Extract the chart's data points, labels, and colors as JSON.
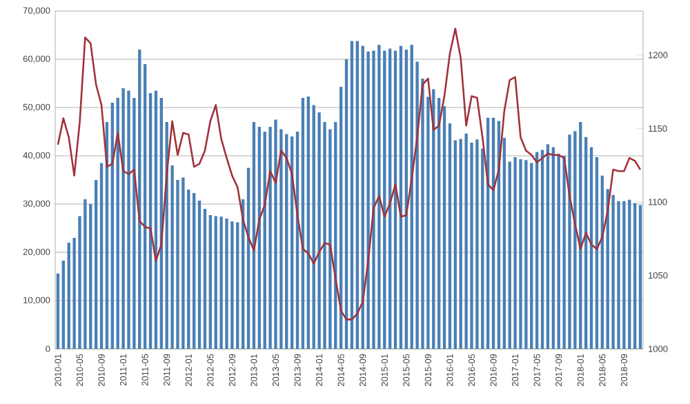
{
  "chart_data": {
    "type": "bar",
    "categories": [
      "2010-01",
      null,
      null,
      null,
      "2010-05",
      null,
      null,
      null,
      "2010-09",
      null,
      null,
      null,
      "2011-01",
      null,
      null,
      null,
      "2011-05",
      null,
      null,
      null,
      "2011-09",
      null,
      null,
      null,
      "2012-01",
      null,
      null,
      null,
      "2012-05",
      null,
      null,
      null,
      "2012-09",
      null,
      null,
      null,
      "2013-01",
      null,
      null,
      null,
      "2013-05",
      null,
      null,
      null,
      "2013-09",
      null,
      null,
      null,
      "2014-01",
      null,
      null,
      null,
      "2014-05",
      null,
      null,
      null,
      "2014-09",
      null,
      null,
      null,
      "2015-01",
      null,
      null,
      null,
      "2015-05",
      null,
      null,
      null,
      "2015-09",
      null,
      null,
      null,
      "2016-01",
      null,
      null,
      null,
      "2016-05",
      null,
      null,
      null,
      "2016-09",
      null,
      null,
      null,
      "2017-01",
      null,
      null,
      null,
      "2017-05",
      null,
      null,
      null,
      "2017-09",
      null,
      null,
      null,
      "2018-01",
      null,
      null,
      null,
      "2018-05",
      null,
      null,
      null,
      "2018-09",
      null,
      null,
      null
    ],
    "series": [
      {
        "color": "#4a7fb5",
        "values": [
          15600,
          18300,
          22000,
          23000,
          27500,
          31000,
          30000,
          35000,
          38500,
          47000,
          51000,
          52000,
          54000,
          53500,
          52000,
          62000,
          59000,
          53000,
          53500,
          52000,
          47000,
          38000,
          35000,
          35500,
          33000,
          32300,
          30700,
          29000,
          27700,
          27500,
          27400,
          27000,
          26400,
          26200,
          31000,
          37500,
          47000,
          46000,
          45000,
          46000,
          47500,
          45500,
          44500,
          44000,
          45000,
          52000,
          52300,
          50500,
          49000,
          47000,
          45500,
          47000,
          54300,
          60000,
          63800,
          63800,
          62800,
          61600,
          61800,
          63000,
          61800,
          62200,
          61800,
          62800,
          62000,
          63000,
          59500,
          56000,
          52200,
          53800,
          52000,
          50300,
          46700,
          43200,
          43500,
          44600,
          42700,
          43400,
          41500,
          47900,
          47900,
          47200,
          43700,
          38800,
          39700,
          39300,
          39100,
          38500,
          40800,
          41200,
          42400,
          41800,
          40400,
          40000,
          44400,
          45100,
          47000,
          43900,
          41800,
          39700,
          35900,
          33100,
          31900,
          30600,
          30600,
          30900,
          30200,
          29800
        ]
      },
      {
        "type": "line",
        "axis": "y2",
        "color": "#a0323c",
        "values": [
          1139,
          1157,
          1144,
          1118,
          1154,
          1212,
          1208,
          1180,
          1166,
          1124,
          1126,
          1147,
          1121,
          1119,
          1122,
          1087,
          1083,
          1082,
          1060,
          1071,
          1119,
          1155,
          1132,
          1147,
          1146,
          1124,
          1126,
          1135,
          1155,
          1166,
          1143,
          1130,
          1118,
          1110,
          1088,
          1076,
          1067,
          1088,
          1098,
          1121,
          1113,
          1135,
          1130,
          1119,
          1091,
          1068,
          1065,
          1058,
          1066,
          1072,
          1071,
          1048,
          1026,
          1020,
          1020,
          1024,
          1032,
          1060,
          1096,
          1104,
          1090,
          1099,
          1112,
          1090,
          1091,
          1116,
          1144,
          1180,
          1184,
          1149,
          1152,
          1172,
          1201,
          1218,
          1198,
          1152,
          1172,
          1171,
          1144,
          1112,
          1108,
          1122,
          1162,
          1183,
          1185,
          1144,
          1135,
          1132,
          1127,
          1130,
          1133,
          1132,
          1132,
          1130,
          1104,
          1085,
          1068,
          1079,
          1071,
          1068,
          1076,
          1094,
          1122,
          1121,
          1121,
          1130,
          1128,
          1122
        ]
      }
    ],
    "ylim": [
      0,
      70000
    ],
    "yticks": [
      0,
      {
        "value": 10000,
        "label": "10,000"
      },
      {
        "value": 20000,
        "label": "20,000"
      },
      {
        "value": 30000,
        "label": "30,000"
      },
      {
        "value": 40000,
        "label": "40,000"
      },
      {
        "value": 50000,
        "label": "50,000"
      },
      {
        "value": 60000,
        "label": "60,000"
      },
      {
        "value": 70000,
        "label": "70,000"
      }
    ],
    "y2lim": [
      1000,
      1230
    ],
    "y2ticks": [
      1000,
      1050,
      1100,
      1150,
      1200
    ],
    "grid": "y",
    "legend": false,
    "marker": "none",
    "line_style": "solid"
  }
}
